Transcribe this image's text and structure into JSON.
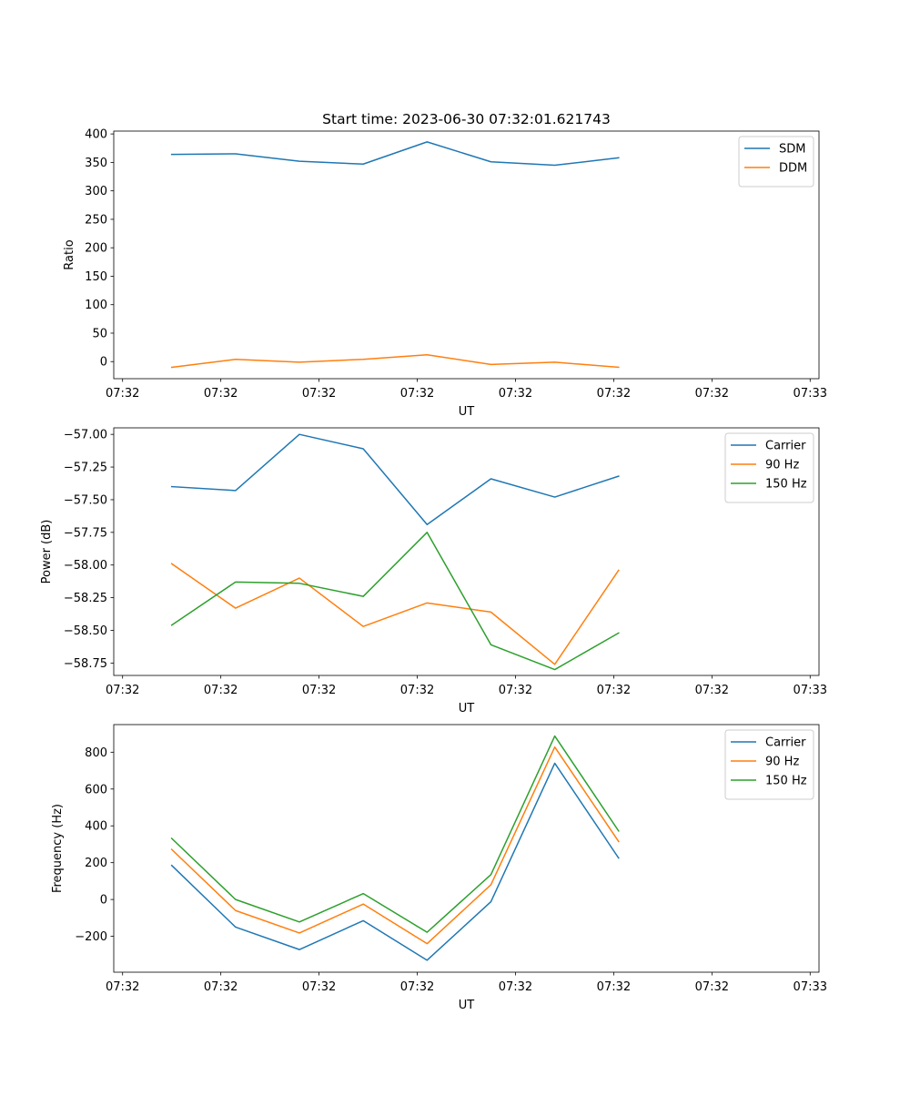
{
  "chart_data": [
    {
      "type": "line",
      "title": "Start time: 2023-06-30 07:32:01.621743",
      "xlabel": "UT",
      "ylabel": "Ratio",
      "x_tick_labels": [
        "07:32",
        "07:32",
        "07:32",
        "07:32",
        "07:32",
        "07:32",
        "07:32",
        "07:33"
      ],
      "x_ticks": [
        0,
        1,
        2,
        3,
        4,
        5,
        6,
        7
      ],
      "xlim": [
        -0.09,
        7.09
      ],
      "x": [
        0.5,
        1.15,
        1.8,
        2.45,
        3.1,
        3.75,
        4.4,
        5.05
      ],
      "y_ticks": [
        0,
        50,
        100,
        150,
        200,
        250,
        300,
        350,
        400
      ],
      "y_tick_labels": [
        "0",
        "50",
        "100",
        "150",
        "200",
        "250",
        "300",
        "350",
        "400"
      ],
      "ylim": [
        -30,
        405
      ],
      "grid": false,
      "legend_position": "top-right",
      "series": [
        {
          "name": "SDM",
          "color": "#1f77b4",
          "values": [
            364,
            365,
            352,
            347,
            386,
            351,
            345,
            358
          ]
        },
        {
          "name": "DDM",
          "color": "#ff7f0e",
          "values": [
            -10,
            4,
            -1,
            4,
            12,
            -5,
            -1,
            -10
          ]
        }
      ]
    },
    {
      "type": "line",
      "title": "",
      "xlabel": "UT",
      "ylabel": "Power (dB)",
      "x_tick_labels": [
        "07:32",
        "07:32",
        "07:32",
        "07:32",
        "07:32",
        "07:32",
        "07:32",
        "07:33"
      ],
      "x_ticks": [
        0,
        1,
        2,
        3,
        4,
        5,
        6,
        7
      ],
      "xlim": [
        -0.09,
        7.09
      ],
      "x": [
        0.5,
        1.15,
        1.8,
        2.45,
        3.1,
        3.75,
        4.4,
        5.05
      ],
      "y_ticks": [
        -58.75,
        -58.5,
        -58.25,
        -58.0,
        -57.75,
        -57.5,
        -57.25,
        -57.0
      ],
      "y_tick_labels": [
        "−58.75",
        "−58.50",
        "−58.25",
        "−58.00",
        "−57.75",
        "−57.50",
        "−57.25",
        "−57.00"
      ],
      "ylim": [
        -58.845,
        -56.95
      ],
      "grid": false,
      "legend_position": "top-right",
      "series": [
        {
          "name": "Carrier",
          "color": "#1f77b4",
          "values": [
            -57.4,
            -57.43,
            -57.0,
            -57.11,
            -57.69,
            -57.34,
            -57.48,
            -57.32
          ]
        },
        {
          "name": "90 Hz",
          "color": "#ff7f0e",
          "values": [
            -57.99,
            -58.33,
            -58.1,
            -58.47,
            -58.29,
            -58.36,
            -58.76,
            -58.04
          ]
        },
        {
          "name": "150 Hz",
          "color": "#2ca02c",
          "values": [
            -58.46,
            -58.13,
            -58.14,
            -58.24,
            -57.75,
            -58.61,
            -58.8,
            -58.52
          ]
        }
      ]
    },
    {
      "type": "line",
      "title": "",
      "xlabel": "UT",
      "ylabel": "Frequency (Hz)",
      "x_tick_labels": [
        "07:32",
        "07:32",
        "07:32",
        "07:32",
        "07:32",
        "07:32",
        "07:32",
        "07:33"
      ],
      "x_ticks": [
        0,
        1,
        2,
        3,
        4,
        5,
        6,
        7
      ],
      "xlim": [
        -0.09,
        7.09
      ],
      "x": [
        0.5,
        1.15,
        1.8,
        2.45,
        3.1,
        3.75,
        4.4,
        5.05
      ],
      "y_ticks": [
        -200,
        0,
        200,
        400,
        600,
        800
      ],
      "y_tick_labels": [
        "−200",
        "0",
        "200",
        "400",
        "600",
        "800"
      ],
      "ylim": [
        -395,
        950
      ],
      "grid": false,
      "legend_position": "top-right",
      "series": [
        {
          "name": "Carrier",
          "color": "#1f77b4",
          "values": [
            185,
            -150,
            -272,
            -115,
            -330,
            -12,
            740,
            225
          ]
        },
        {
          "name": "90 Hz",
          "color": "#ff7f0e",
          "values": [
            272,
            -60,
            -182,
            -25,
            -240,
            80,
            828,
            315
          ]
        },
        {
          "name": "150 Hz",
          "color": "#2ca02c",
          "values": [
            332,
            0,
            -122,
            32,
            -178,
            135,
            888,
            372
          ]
        }
      ]
    }
  ]
}
